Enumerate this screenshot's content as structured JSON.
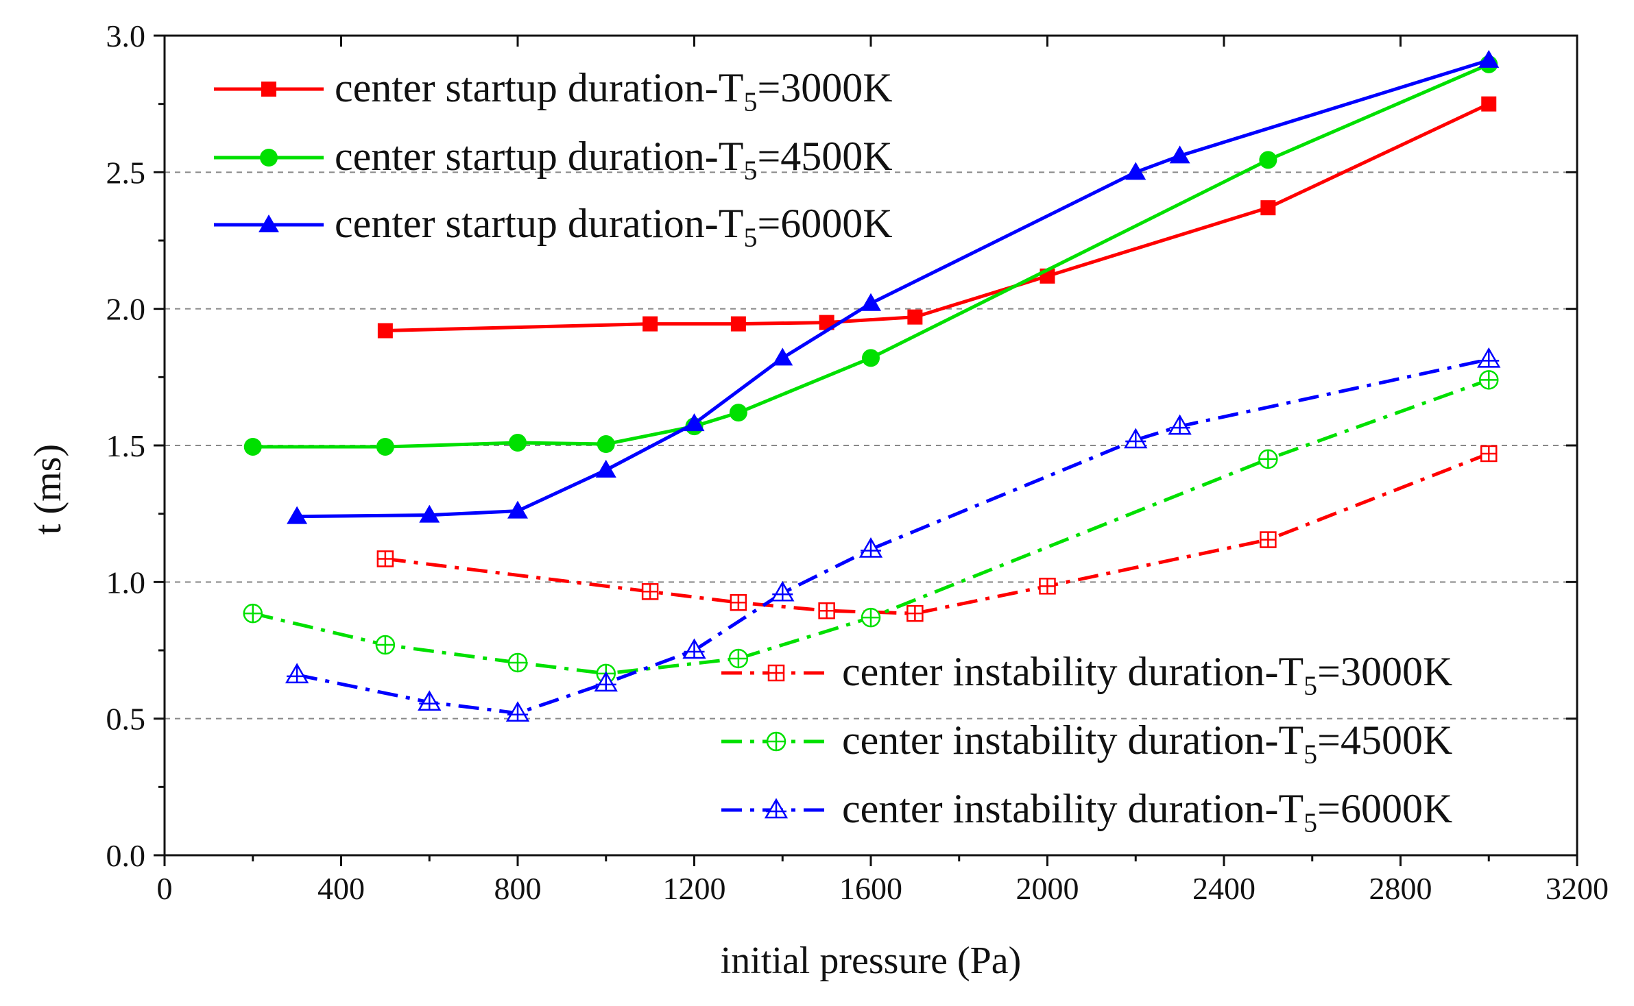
{
  "chart_data": {
    "type": "line",
    "title": "",
    "xlabel": "initial pressure (Pa)",
    "ylabel": "t (ms)",
    "xlim": [
      0,
      3200
    ],
    "ylim": [
      0,
      3.0
    ],
    "xticks": [
      0,
      400,
      800,
      1200,
      1600,
      2000,
      2400,
      2800,
      3200
    ],
    "yticks": [
      0.0,
      0.5,
      1.0,
      1.5,
      2.0,
      2.5,
      3.0
    ],
    "xtick_labels": [
      "0",
      "400",
      "800",
      "1200",
      "1600",
      "2000",
      "2400",
      "2800",
      "3200"
    ],
    "ytick_labels": [
      "0.0",
      "0.5",
      "1.0",
      "1.5",
      "2.0",
      "2.5",
      "3.0"
    ],
    "grid": "horizontal dashed at 0.5, 1.0, 1.5, 2.0, 2.5",
    "legend": [
      {
        "placement": "top-left",
        "series": [
          0,
          1,
          2
        ]
      },
      {
        "placement": "bottom-right",
        "series": [
          3,
          4,
          5
        ]
      }
    ],
    "series": [
      {
        "name_main": "center startup duration-T",
        "name_sub": "5",
        "name_tail": "=3000K",
        "color": "#ff0000",
        "marker": "square-filled",
        "line": "solid",
        "x": [
          500,
          1100,
          1300,
          1500,
          1700,
          2000,
          2500,
          3000
        ],
        "y": [
          1.92,
          1.945,
          1.945,
          1.95,
          1.97,
          2.12,
          2.37,
          2.75
        ]
      },
      {
        "name_main": "center startup duration-T",
        "name_sub": "5",
        "name_tail": "=4500K",
        "color": "#00e000",
        "marker": "circle-filled",
        "line": "solid",
        "x": [
          200,
          500,
          800,
          1000,
          1200,
          1300,
          1600,
          2500,
          3000
        ],
        "y": [
          1.495,
          1.495,
          1.51,
          1.505,
          1.57,
          1.62,
          1.82,
          2.545,
          2.895
        ]
      },
      {
        "name_main": "center startup duration-T",
        "name_sub": "5",
        "name_tail": "=6000K",
        "color": "#0000ff",
        "marker": "triangle-filled",
        "line": "solid",
        "x": [
          300,
          600,
          800,
          1000,
          1200,
          1400,
          1600,
          2200,
          2300,
          3000
        ],
        "y": [
          1.24,
          1.245,
          1.26,
          1.41,
          1.58,
          1.82,
          2.02,
          2.5,
          2.56,
          2.91
        ]
      },
      {
        "name_main": "center instability duration-T",
        "name_sub": "5",
        "name_tail": "=3000K",
        "color": "#ff0000",
        "marker": "square-cross-open",
        "line": "dashdot",
        "x": [
          500,
          1100,
          1300,
          1500,
          1700,
          2000,
          2500,
          3000
        ],
        "y": [
          1.085,
          0.965,
          0.925,
          0.895,
          0.885,
          0.985,
          1.155,
          1.47
        ]
      },
      {
        "name_main": "center instability duration-T",
        "name_sub": "5",
        "name_tail": "=4500K",
        "color": "#00e000",
        "marker": "circle-cross-open",
        "line": "dashdot",
        "x": [
          200,
          500,
          800,
          1000,
          1300,
          1600,
          2500,
          3000
        ],
        "y": [
          0.885,
          0.77,
          0.705,
          0.665,
          0.72,
          0.87,
          1.45,
          1.74
        ]
      },
      {
        "name_main": "center instability duration-T",
        "name_sub": "5",
        "name_tail": "=6000K",
        "color": "#0000ff",
        "marker": "triangle-cross-open",
        "line": "dashdot",
        "x": [
          300,
          600,
          800,
          1000,
          1200,
          1400,
          1600,
          2200,
          2300,
          3000
        ],
        "y": [
          0.66,
          0.56,
          0.52,
          0.63,
          0.75,
          0.96,
          1.12,
          1.52,
          1.57,
          1.815
        ]
      }
    ]
  }
}
